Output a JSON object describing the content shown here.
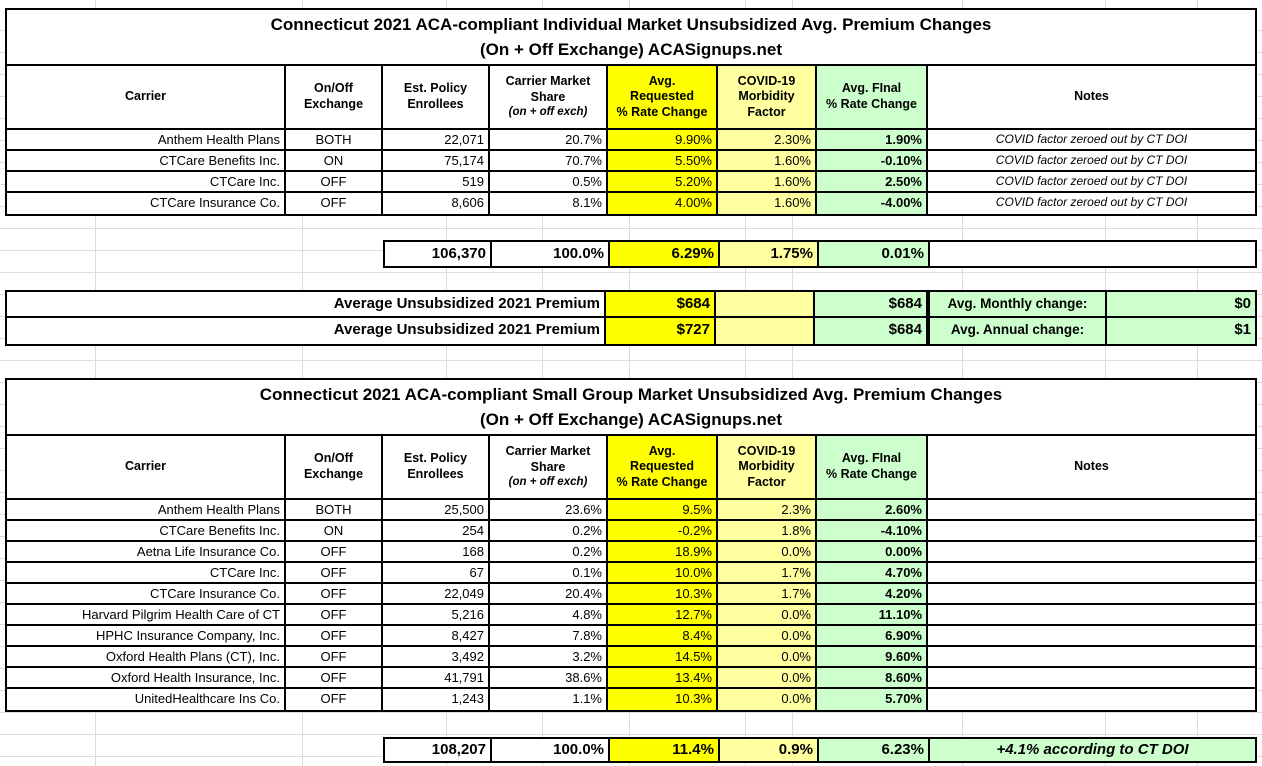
{
  "colors": {
    "requested_bg": "#FFFF00",
    "covid_bg": "#FFFFA0",
    "final_bg": "#CCFFCC",
    "grid_line": "#DCDCDC",
    "border": "#000000"
  },
  "headers": {
    "carrier": "Carrier",
    "exchange": "On/Off\nExchange",
    "enrollees": "Est. Policy\nEnrollees",
    "share_main": "Carrier Market\nShare",
    "share_sub": "(on + off exch)",
    "requested": "Avg.\nRequested\n% Rate Change",
    "covid": "COVID-19\nMorbidity\nFactor",
    "final": "Avg. FInal\n% Rate Change",
    "notes": "Notes"
  },
  "table1": {
    "title_line1": "Connecticut 2021 ACA-compliant Individual Market Unsubsidized Avg. Premium Changes",
    "title_line2": "(On + Off Exchange) ACASignups.net",
    "rows": [
      {
        "carrier": "Anthem Health Plans",
        "exchange": "BOTH",
        "enrollees": "22,071",
        "share": "20.7%",
        "requested": "9.90%",
        "covid": "2.30%",
        "final": "1.90%",
        "note": "COVID factor zeroed out by CT DOI"
      },
      {
        "carrier": "CTCare Benefits Inc.",
        "exchange": "ON",
        "enrollees": "75,174",
        "share": "70.7%",
        "requested": "5.50%",
        "covid": "1.60%",
        "final": "-0.10%",
        "note": "COVID factor zeroed out by CT DOI"
      },
      {
        "carrier": "CTCare Inc.",
        "exchange": "OFF",
        "enrollees": "519",
        "share": "0.5%",
        "requested": "5.20%",
        "covid": "1.60%",
        "final": "2.50%",
        "note": "COVID factor zeroed out by CT DOI"
      },
      {
        "carrier": "CTCare Insurance Co.",
        "exchange": "OFF",
        "enrollees": "8,606",
        "share": "8.1%",
        "requested": "4.00%",
        "covid": "1.60%",
        "final": "-4.00%",
        "note": "COVID factor zeroed out by CT DOI"
      }
    ],
    "totals": {
      "enrollees": "106,370",
      "share": "100.0%",
      "requested": "6.29%",
      "covid": "1.75%",
      "final": "0.01%",
      "note": ""
    }
  },
  "premium": {
    "row1": {
      "label": "Average Unsubsidized 2021 Premium",
      "requested": "$684",
      "covid": "",
      "final": "$684"
    },
    "row2": {
      "label": "Average Unsubsidized 2021 Premium",
      "requested": "$727",
      "covid": "",
      "final": "$684"
    },
    "side1": {
      "label": "Avg. Monthly change:",
      "value": "$0"
    },
    "side2": {
      "label": "Avg. Annual change:",
      "value": "$1"
    }
  },
  "table2": {
    "title_line1": "Connecticut 2021 ACA-compliant Small Group Market Unsubsidized Avg. Premium Changes",
    "title_line2": "(On + Off Exchange) ACASignups.net",
    "rows": [
      {
        "carrier": "Anthem Health Plans",
        "exchange": "BOTH",
        "enrollees": "25,500",
        "share": "23.6%",
        "requested": "9.5%",
        "covid": "2.3%",
        "final": "2.60%",
        "note": ""
      },
      {
        "carrier": "CTCare Benefits Inc.",
        "exchange": "ON",
        "enrollees": "254",
        "share": "0.2%",
        "requested": "-0.2%",
        "covid": "1.8%",
        "final": "-4.10%",
        "note": ""
      },
      {
        "carrier": "Aetna Life Insurance Co.",
        "exchange": "OFF",
        "enrollees": "168",
        "share": "0.2%",
        "requested": "18.9%",
        "covid": "0.0%",
        "final": "0.00%",
        "note": ""
      },
      {
        "carrier": "CTCare Inc.",
        "exchange": "OFF",
        "enrollees": "67",
        "share": "0.1%",
        "requested": "10.0%",
        "covid": "1.7%",
        "final": "4.70%",
        "note": ""
      },
      {
        "carrier": "CTCare Insurance Co.",
        "exchange": "OFF",
        "enrollees": "22,049",
        "share": "20.4%",
        "requested": "10.3%",
        "covid": "1.7%",
        "final": "4.20%",
        "note": ""
      },
      {
        "carrier": "Harvard Pilgrim Health Care of CT",
        "exchange": "OFF",
        "enrollees": "5,216",
        "share": "4.8%",
        "requested": "12.7%",
        "covid": "0.0%",
        "final": "11.10%",
        "note": ""
      },
      {
        "carrier": "HPHC Insurance Company, Inc.",
        "exchange": "OFF",
        "enrollees": "8,427",
        "share": "7.8%",
        "requested": "8.4%",
        "covid": "0.0%",
        "final": "6.90%",
        "note": ""
      },
      {
        "carrier": "Oxford Health Plans (CT), Inc.",
        "exchange": "OFF",
        "enrollees": "3,492",
        "share": "3.2%",
        "requested": "14.5%",
        "covid": "0.0%",
        "final": "9.60%",
        "note": ""
      },
      {
        "carrier": "Oxford Health Insurance, Inc.",
        "exchange": "OFF",
        "enrollees": "41,791",
        "share": "38.6%",
        "requested": "13.4%",
        "covid": "0.0%",
        "final": "8.60%",
        "note": ""
      },
      {
        "carrier": "UnitedHealthcare Ins Co.",
        "exchange": "OFF",
        "enrollees": "1,243",
        "share": "1.1%",
        "requested": "10.3%",
        "covid": "0.0%",
        "final": "5.70%",
        "note": ""
      }
    ],
    "totals": {
      "enrollees": "108,207",
      "share": "100.0%",
      "requested": "11.4%",
      "covid": "0.9%",
      "final": "6.23%",
      "note": "+4.1% according to CT DOI"
    }
  }
}
